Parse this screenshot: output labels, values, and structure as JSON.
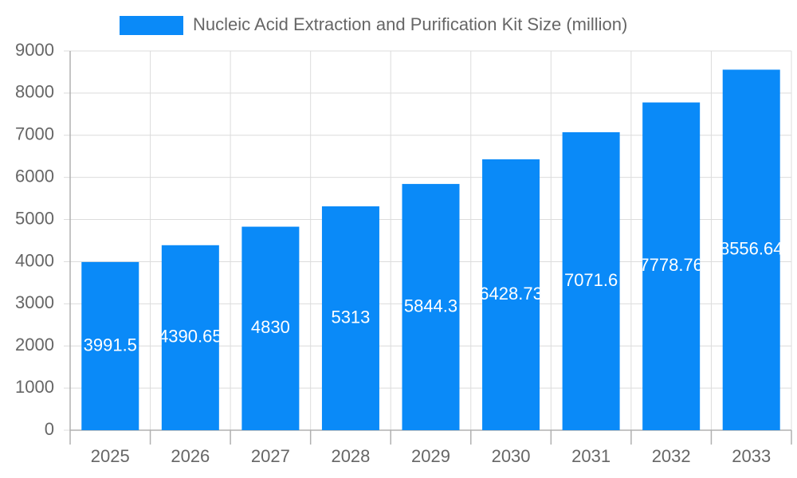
{
  "chart_data": {
    "type": "bar",
    "legend": "Nucleic Acid Extraction and Purification Kit Size (million)",
    "categories": [
      "2025",
      "2026",
      "2027",
      "2028",
      "2029",
      "2030",
      "2031",
      "2032",
      "2033"
    ],
    "values": [
      3991.5,
      4390.65,
      4830,
      5313,
      5844.3,
      6428.73,
      7071.6,
      7778.76,
      8556.64
    ],
    "color": "#0a8af8",
    "ylim": [
      0,
      9000
    ],
    "yticks": [
      0,
      1000,
      2000,
      3000,
      4000,
      5000,
      6000,
      7000,
      8000,
      9000
    ],
    "grid": true
  }
}
